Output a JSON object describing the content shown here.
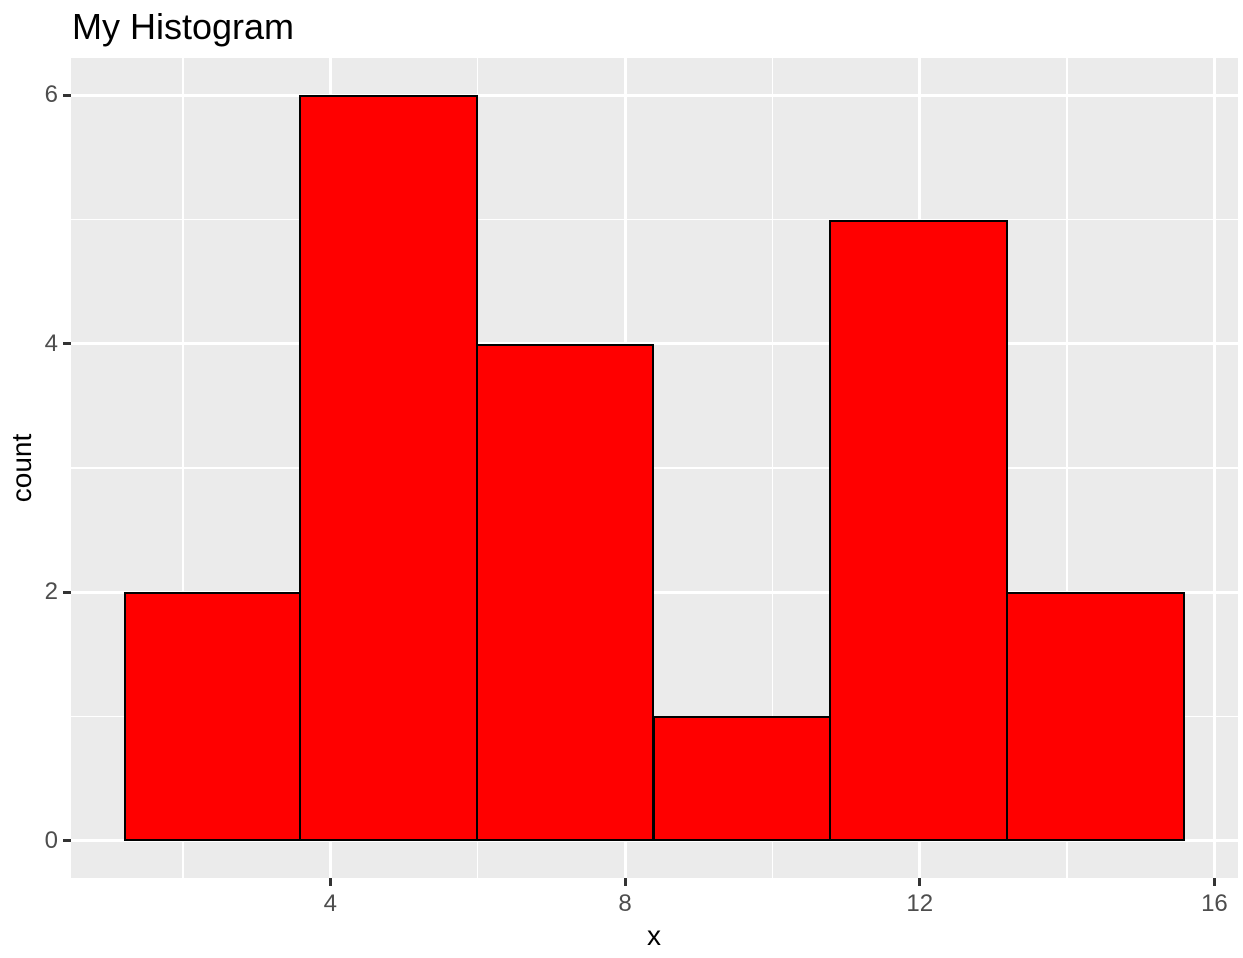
{
  "title": "My Histogram",
  "chart_data": {
    "type": "bar",
    "subtype": "histogram",
    "title": "My Histogram",
    "xlabel": "x",
    "ylabel": "count",
    "bin_edges": [
      1.2,
      3.6,
      6.0,
      8.4,
      10.8,
      13.2,
      15.6
    ],
    "counts": [
      2,
      6,
      4,
      1,
      5,
      2
    ],
    "x_major_ticks": [
      4,
      8,
      12,
      16
    ],
    "y_major_ticks": [
      0,
      2,
      4,
      6
    ],
    "x_minor_gridlines": [
      2,
      6,
      10,
      14
    ],
    "y_minor_gridlines": [
      1,
      3,
      5
    ],
    "xlim": [
      0.48,
      16.32
    ],
    "ylim": [
      -0.3,
      6.3
    ],
    "grid": "on",
    "legend": "none",
    "theme": "ggplot2-gray",
    "colors": {
      "bar_fill": "#FF0000",
      "bar_stroke": "#000000",
      "panel_background": "#EBEBEB",
      "gridline": "#FFFFFF",
      "tick_mark": "#333333",
      "tick_label": "#4D4D4D",
      "title_text": "#000000",
      "figure_background": "#FFFFFF"
    }
  }
}
